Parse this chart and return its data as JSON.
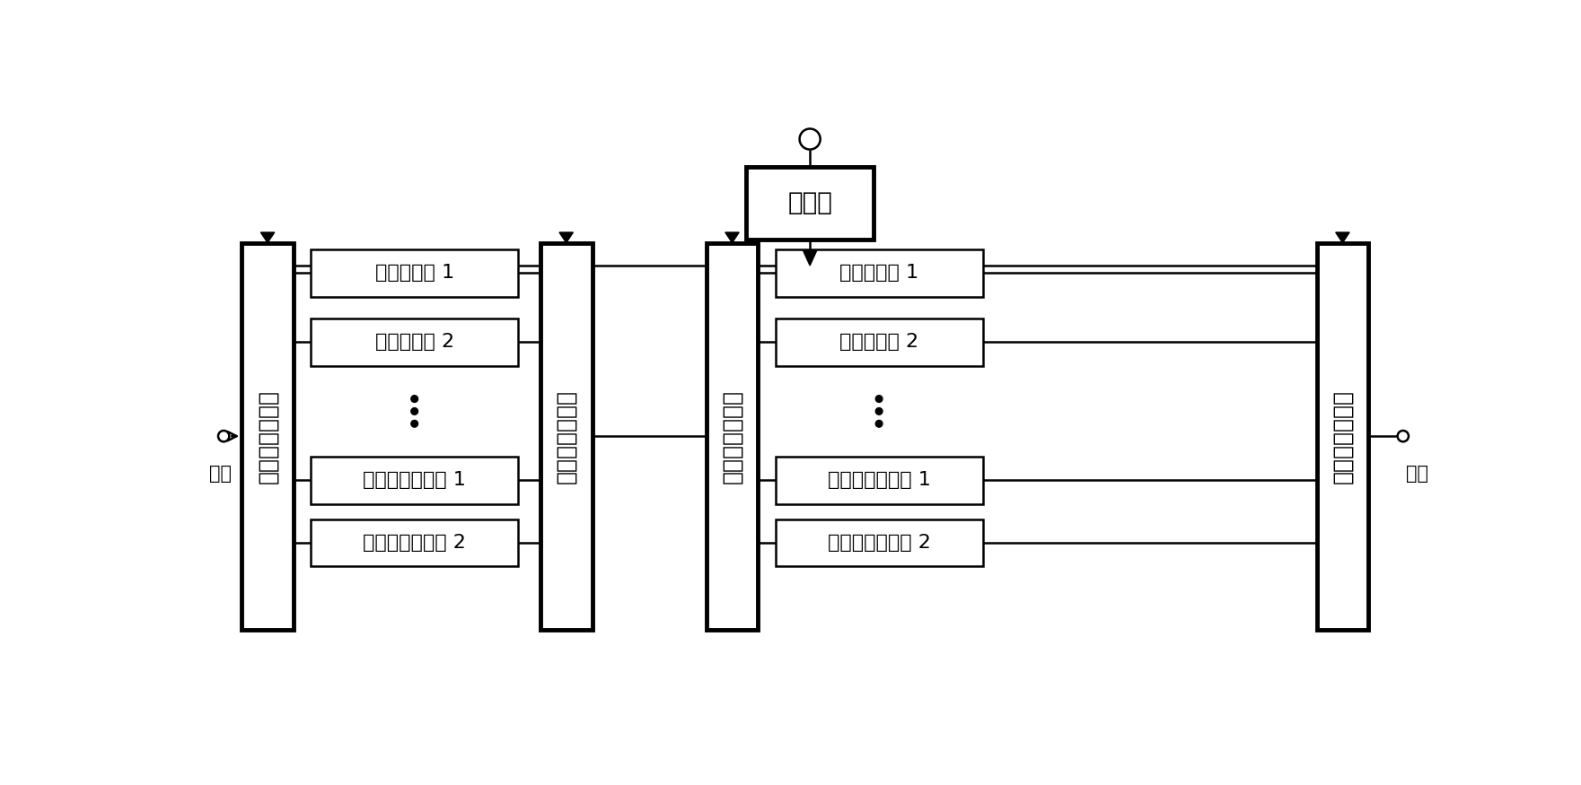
{
  "bg_color": "#ffffff",
  "controller_label": "控制器",
  "switch_label": "一刀八捣开关阵",
  "filter_boxes_left": [
    "窄带滤波器 1",
    "窄带滤波器 2",
    "前级宽带滤波器 1",
    "前级宽带滤波器 2"
  ],
  "filter_boxes_right": [
    "窄带滤波器 1",
    "窄带滤波器 2",
    "后级宽带滤波器 1",
    "后级宽带滤波器 2"
  ],
  "input_label": "输入",
  "output_label": "输出",
  "lw_thin": 1.8,
  "lw_thick": 3.5,
  "font_size_filter": 16,
  "font_size_switch": 18,
  "font_size_ctrl": 20,
  "font_size_io": 15
}
